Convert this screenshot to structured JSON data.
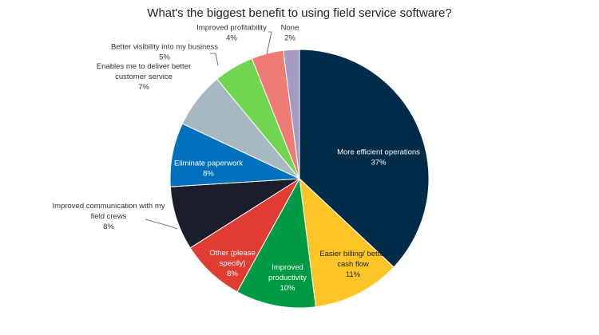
{
  "chart_data": {
    "type": "pie",
    "title": "What's the biggest benefit to using field service software?",
    "slices": [
      {
        "label": [
          "More efficient operations"
        ],
        "value": 37,
        "value_label": "37%",
        "color": "#002b49"
      },
      {
        "label": [
          "Easier billing/ better",
          "cash flow"
        ],
        "value": 11,
        "value_label": "11%",
        "color": "#ffc526"
      },
      {
        "label": [
          "Improved",
          "productivity"
        ],
        "value": 10,
        "value_label": "10%",
        "color": "#009a44"
      },
      {
        "label": [
          "Other (please",
          "specify)"
        ],
        "value": 8,
        "value_label": "8%",
        "color": "#e03c31"
      },
      {
        "label": [
          "Improved communication with my",
          "field crews"
        ],
        "value": 8,
        "value_label": "8%",
        "color": "#1a1e2a"
      },
      {
        "label": [
          "Eliminate paperwork"
        ],
        "value": 8,
        "value_label": "8%",
        "color": "#0071bc"
      },
      {
        "label": [
          "Enables me to deliver better",
          "customer service"
        ],
        "value": 7,
        "value_label": "7%",
        "color": "#a8b8c2"
      },
      {
        "label": [
          "Better visibility into my business"
        ],
        "value": 5,
        "value_label": "5%",
        "color": "#71d64f"
      },
      {
        "label": [
          "Improved profitability"
        ],
        "value": 4,
        "value_label": "4%",
        "color": "#ef7b75"
      },
      {
        "label": [
          "None"
        ],
        "value": 2,
        "value_label": "2%",
        "color": "#a49ac4"
      }
    ]
  }
}
